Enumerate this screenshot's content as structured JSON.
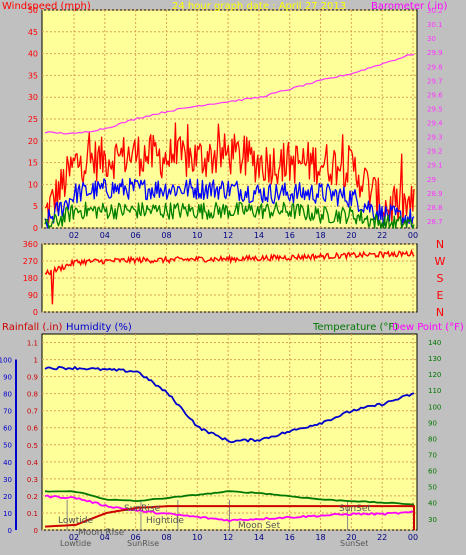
{
  "colors": {
    "panel_bg": "#ffff99",
    "frame_bg": "#c0c0c0",
    "grid": "#d9a35a",
    "wind_gust": "#ff0000",
    "wind_avg": "#0000ff",
    "wind_min": "#008000",
    "barometer": "#ff33ff",
    "direction": "#ff0000",
    "rainfall": "#cc0000",
    "humidity": "#0000cc",
    "temperature": "#007700",
    "dewpoint": "#ff00ff"
  },
  "top_panel": {
    "title": "24 hour graph date : April 27 2013",
    "left_label": "Windspeed (mph)",
    "right_label": "Barometer (.in)",
    "left_ticks": [
      "0",
      "5",
      "10",
      "15",
      "20",
      "25",
      "30",
      "35",
      "40",
      "45",
      "50"
    ],
    "right_ticks": [
      "28.7",
      "28.8",
      "28.9",
      "29",
      "29.1",
      "29.2",
      "29.3",
      "29.4",
      "29.5",
      "29.6",
      "29.7",
      "29.8",
      "29.9",
      "30",
      "30.1",
      "30.2"
    ],
    "x_ticks": [
      "02",
      "04",
      "06",
      "08",
      "10",
      "12",
      "14",
      "16",
      "18",
      "20",
      "22",
      "00"
    ]
  },
  "direction_panel": {
    "left_ticks": [
      "0",
      "90",
      "180",
      "270",
      "360"
    ],
    "right_labels": [
      "N",
      "W",
      "S",
      "E",
      "N"
    ]
  },
  "bottom_panel": {
    "rain_label": "Rainfall (.in)",
    "humidity_label": "Humidity (%)",
    "temp_label": "Temperature (°F)",
    "dew_label": "Dew Point (°F)",
    "rain_ticks": [
      "0",
      "0.1",
      "0.2",
      "0.3",
      "0.4",
      "0.5",
      "0.6",
      "0.7",
      "0.8",
      "0.9",
      "1",
      "1.1"
    ],
    "hum_ticks": [
      "0",
      "10",
      "20",
      "30",
      "40",
      "50",
      "60",
      "70",
      "80",
      "90",
      "100"
    ],
    "temp_ticks": [
      "30",
      "40",
      "50",
      "60",
      "70",
      "80",
      "90",
      "100",
      "110",
      "120",
      "130",
      "140"
    ],
    "x_ticks": [
      "02",
      "04",
      "06",
      "08",
      "10",
      "12",
      "14",
      "16",
      "18",
      "20",
      "22",
      "00"
    ],
    "events": {
      "lowtide": "Lowtide",
      "moonrise": "Moon Rise",
      "sunrise": "SunRise",
      "hightide": "Hightide",
      "moonset": "Moon Set",
      "sunset": "SunSet",
      "axis_lowtide": "Lowtide",
      "axis_sunrise": "SunRise",
      "axis_sunset": "SunSet"
    }
  },
  "chart_data": [
    {
      "type": "line",
      "title": "24 hour graph date : April 27 2013",
      "xlabel": "",
      "ylabel": "Windspeed (mph)",
      "y2label": "Barometer (.in)",
      "ylim": [
        0,
        50
      ],
      "y2lim": [
        28.65,
        30.2
      ],
      "x": [
        "00:30",
        "02",
        "04",
        "06",
        "08",
        "10",
        "12",
        "14",
        "16",
        "18",
        "20",
        "22",
        "00"
      ],
      "series": [
        {
          "name": "",
          "axis": "left",
          "role": "gust",
          "values": [
            3,
            15,
            16,
            17,
            16,
            16,
            17,
            15,
            15,
            15,
            14,
            5,
            5
          ]
        },
        {
          "name": "",
          "axis": "left",
          "role": "average",
          "values": [
            1,
            8,
            9,
            9,
            9,
            9,
            9,
            8,
            8,
            8,
            7,
            3,
            2
          ]
        },
        {
          "name": "",
          "axis": "left",
          "role": "minimum",
          "values": [
            0,
            4,
            4,
            4,
            4,
            4,
            4,
            4,
            4,
            3,
            3,
            1,
            1
          ]
        },
        {
          "name": "",
          "axis": "right",
          "role": "barometer",
          "values": [
            29.33,
            29.32,
            29.36,
            29.43,
            29.48,
            29.52,
            29.55,
            29.58,
            29.64,
            29.7,
            29.75,
            29.82,
            29.89
          ]
        }
      ]
    },
    {
      "type": "line",
      "ylabel": "",
      "ylim": [
        0,
        360
      ],
      "x": [
        "00:30",
        "02",
        "04",
        "06",
        "08",
        "10",
        "12",
        "14",
        "16",
        "18",
        "20",
        "22",
        "00"
      ],
      "series": [
        {
          "name": "",
          "values": [
            200,
            265,
            270,
            275,
            275,
            280,
            280,
            285,
            290,
            295,
            300,
            305,
            310
          ]
        }
      ]
    },
    {
      "type": "line",
      "ylabel": "Rainfall (.in)",
      "ylim": [
        0,
        1.15
      ],
      "y2label": "Temperature (°F)",
      "y2lim": [
        23,
        145
      ],
      "x": [
        "00:30",
        "02",
        "04",
        "06",
        "08",
        "10",
        "12",
        "14",
        "16",
        "18",
        "20",
        "22",
        "00"
      ],
      "series": [
        {
          "name": "Rainfall (.in)",
          "axis": "rain",
          "values": [
            0.02,
            0.03,
            0.1,
            0.13,
            0.14,
            0.14,
            0.14,
            0.14,
            0.14,
            0.14,
            0.14,
            0.14,
            0.14
          ]
        },
        {
          "name": "Humidity (%)",
          "axis": "humidity",
          "values": [
            95,
            95,
            94,
            93,
            80,
            60,
            52,
            53,
            58,
            63,
            70,
            74,
            80
          ]
        },
        {
          "name": "Temperature (°F)",
          "axis": "temp",
          "values": [
            47,
            47,
            42,
            41,
            43,
            45,
            47,
            46,
            44,
            42,
            41,
            40,
            39
          ]
        },
        {
          "name": "Dew Point (°F)",
          "axis": "temp",
          "values": [
            44,
            43,
            38,
            35,
            33,
            31,
            29,
            30,
            31,
            32,
            33,
            33,
            34
          ]
        }
      ]
    }
  ]
}
